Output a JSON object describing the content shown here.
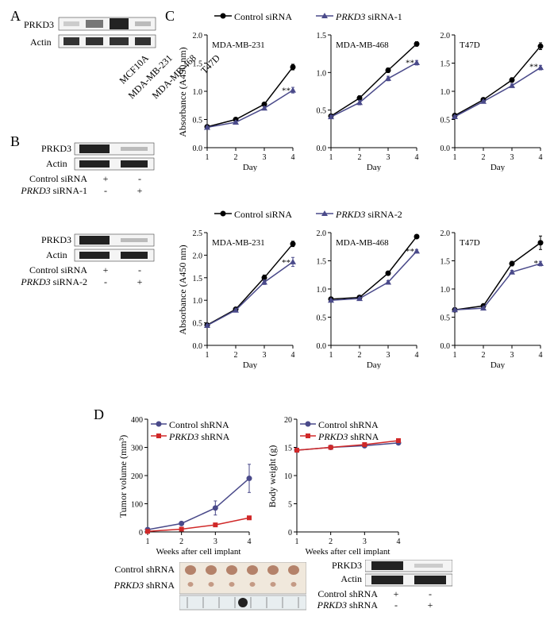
{
  "panelLabels": {
    "A": "A",
    "B": "B",
    "C": "C",
    "D": "D"
  },
  "proteins": {
    "prkd3": "PRKD3",
    "actin": "Actin"
  },
  "panelA": {
    "lanes": [
      "MCF10A",
      "MDA-MB-231",
      "MDA-MB-468",
      "T47D"
    ]
  },
  "panelB": {
    "rows": [
      {
        "label": "Control siRNA",
        "vals": [
          "+",
          "-"
        ]
      },
      {
        "label": "PRKD3",
        "vals": [
          "-",
          "+"
        ],
        "suffix": " siRNA-1"
      },
      {
        "label": "Control siRNA",
        "vals": [
          "+",
          "-"
        ]
      },
      {
        "label": "PRKD3",
        "vals": [
          "-",
          "+"
        ],
        "suffix": " siRNA-2"
      }
    ]
  },
  "panelC": {
    "legendTop": {
      "ctrl": "Control siRNA",
      "treat": "PRKD3",
      "treatSuffix": " siRNA-1"
    },
    "legendBottom": {
      "ctrl": "Control siRNA",
      "treat": "PRKD3",
      "treatSuffix": " siRNA-2"
    },
    "ylabel": "Absorbance (A450 nm)",
    "xlabel": "Day",
    "xticks": [
      1,
      2,
      3,
      4
    ],
    "colors": {
      "ctrl": "#000000",
      "treat": "#4a4a8a"
    },
    "rowTop": [
      {
        "title": "MDA-MB-231",
        "ylim": [
          0,
          2.0
        ],
        "yticks": [
          0,
          0.5,
          1.0,
          1.5,
          2.0
        ],
        "ctrl": [
          0.37,
          0.5,
          0.77,
          1.43
        ],
        "ctrlErr": [
          0.02,
          0.02,
          0.03,
          0.05
        ],
        "treat": [
          0.36,
          0.45,
          0.7,
          1.02
        ],
        "treatErr": [
          0.02,
          0.02,
          0.03,
          0.05
        ],
        "sig": "**",
        "sigPos": [
          4,
          1.08
        ]
      },
      {
        "title": "MDA-MB-468",
        "ylim": [
          0,
          1.5
        ],
        "yticks": [
          0,
          0.5,
          1.0,
          1.5
        ],
        "ctrl": [
          0.42,
          0.66,
          1.03,
          1.38
        ],
        "ctrlErr": [
          0.02,
          0.03,
          0.03,
          0.03
        ],
        "treat": [
          0.41,
          0.6,
          0.92,
          1.13
        ],
        "treatErr": [
          0.02,
          0.03,
          0.03,
          0.03
        ],
        "sig": "**",
        "sigPos": [
          4,
          1.18
        ]
      },
      {
        "title": "T47D",
        "ylim": [
          0,
          2.0
        ],
        "yticks": [
          0,
          0.5,
          1.0,
          1.5,
          2.0
        ],
        "ctrl": [
          0.57,
          0.85,
          1.2,
          1.8
        ],
        "ctrlErr": [
          0.02,
          0.02,
          0.04,
          0.06
        ],
        "treat": [
          0.55,
          0.82,
          1.1,
          1.42
        ],
        "treatErr": [
          0.02,
          0.02,
          0.03,
          0.04
        ],
        "sig": "**",
        "sigPos": [
          4,
          1.5
        ]
      }
    ],
    "rowBottom": [
      {
        "title": "MDA-MB-231",
        "ylim": [
          0,
          2.5
        ],
        "yticks": [
          0,
          0.5,
          1.0,
          1.5,
          2.0,
          2.5
        ],
        "ctrl": [
          0.45,
          0.8,
          1.5,
          2.25
        ],
        "ctrlErr": [
          0.02,
          0.03,
          0.06,
          0.06
        ],
        "treat": [
          0.44,
          0.78,
          1.4,
          1.85
        ],
        "treatErr": [
          0.02,
          0.03,
          0.05,
          0.1
        ],
        "sig": "**",
        "sigPos": [
          4,
          1.92
        ]
      },
      {
        "title": "MDA-MB-468",
        "ylim": [
          0,
          2.0
        ],
        "yticks": [
          0,
          0.5,
          1.0,
          1.5,
          2.0
        ],
        "ctrl": [
          0.82,
          0.85,
          1.28,
          1.93
        ],
        "ctrlErr": [
          0.02,
          0.02,
          0.03,
          0.03
        ],
        "treat": [
          0.8,
          0.83,
          1.12,
          1.67
        ],
        "treatErr": [
          0.02,
          0.02,
          0.03,
          0.03
        ],
        "sig": "**",
        "sigPos": [
          4,
          1.73
        ]
      },
      {
        "title": "T47D",
        "ylim": [
          0,
          2.0
        ],
        "yticks": [
          0,
          0.5,
          1.0,
          1.5,
          2.0
        ],
        "ctrl": [
          0.63,
          0.7,
          1.45,
          1.82
        ],
        "ctrlErr": [
          0.02,
          0.02,
          0.04,
          0.12
        ],
        "treat": [
          0.63,
          0.66,
          1.3,
          1.45
        ],
        "treatErr": [
          0.02,
          0.02,
          0.03,
          0.04
        ],
        "sig": "*",
        "sigPos": [
          4,
          1.52
        ]
      }
    ]
  },
  "panelD": {
    "legend": {
      "ctrl": "Control shRNA",
      "treat": "PRKD3",
      "treatSuffix": " shRNA"
    },
    "xlabel": "Weeks after cell implant",
    "xticks": [
      1,
      2,
      3,
      4
    ],
    "colors": {
      "ctrl": "#4a4a8a",
      "treat": "#d02828"
    },
    "left": {
      "ylabel": "Tumor volume (mm³)",
      "ylim": [
        0,
        400
      ],
      "yticks": [
        0,
        100,
        200,
        300,
        400
      ],
      "ctrl": [
        8,
        30,
        85,
        190
      ],
      "ctrlErr": [
        3,
        5,
        25,
        50
      ],
      "treat": [
        2,
        10,
        25,
        50
      ],
      "treatErr": [
        2,
        3,
        4,
        5
      ]
    },
    "right": {
      "ylabel": "Body weight (g)",
      "ylim": [
        0,
        20
      ],
      "yticks": [
        0,
        5,
        10,
        15,
        20
      ],
      "ctrl": [
        14.5,
        15.0,
        15.3,
        15.8
      ],
      "ctrlErr": [
        0.3,
        0.3,
        0.3,
        0.3
      ],
      "treat": [
        14.5,
        15.0,
        15.5,
        16.2
      ],
      "treatErr": [
        0.3,
        0.3,
        0.3,
        0.3
      ]
    },
    "photoLabels": {
      "ctrl": "Control shRNA",
      "treat": "PRKD3",
      "treatSuffix": " shRNA"
    },
    "blotRows": [
      {
        "label": "Control shRNA",
        "vals": [
          "+",
          "-"
        ]
      },
      {
        "label": "PRKD3",
        "vals": [
          "-",
          "+"
        ],
        "suffix": " shRNA"
      }
    ]
  }
}
